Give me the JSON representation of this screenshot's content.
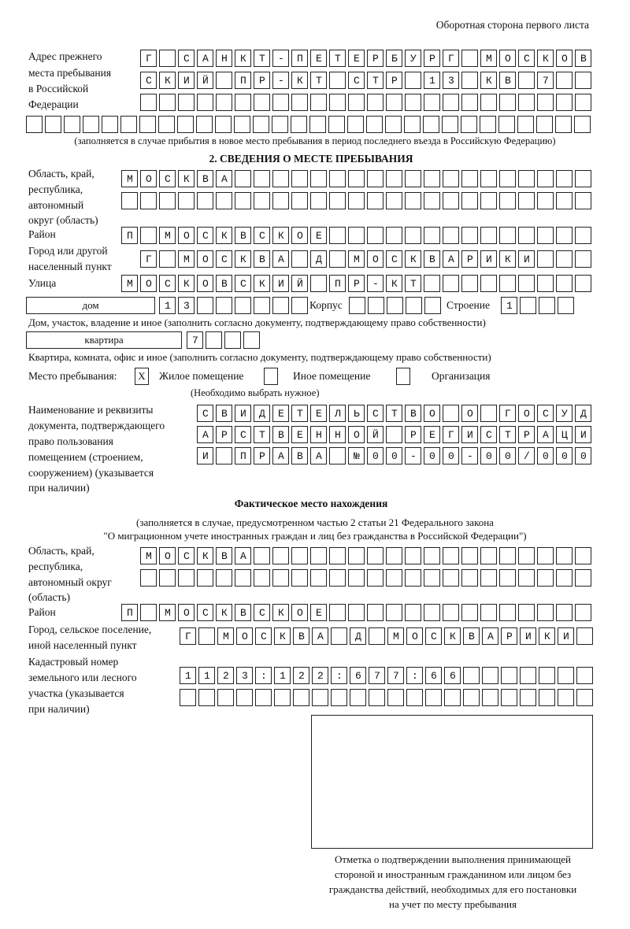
{
  "header": {
    "side_note": "Оборотная сторона первого листа"
  },
  "prev_address": {
    "label_lines": [
      "Адрес прежнего",
      "места пребывания",
      "в Российской",
      "Федерации"
    ],
    "rows": [
      "Г САНКТ-ПЕТЕРБУРГ МОСКОВ",
      "СКИЙ ПР-КТ СТР 13 КВ 7",
      "",
      ""
    ],
    "note": "(заполняется в случае прибытия в новое место пребывания в период последнего въезда в Российскую Федерацию)"
  },
  "section2": {
    "title": "2. СВЕДЕНИЯ О МЕСТЕ ПРЕБЫВАНИЯ",
    "region_label_lines": [
      "Область, край,",
      "республика,",
      "автономный",
      "округ (область)"
    ],
    "region_rows": [
      "МОСКВА",
      ""
    ],
    "district_label": "Район",
    "district": "П МОСКВСКОЕ",
    "city_label_lines": [
      "Город или другой",
      "населенный пункт"
    ],
    "city": "Г МОСКВА Д МОСКВАРИКИ",
    "street_label": "Улица",
    "street": "МОСКОВСКИЙ ПР-КТ",
    "house_type": "дом",
    "house_number": "13",
    "korpus_label": "Корпус",
    "korpus": "",
    "building_label": "Строение",
    "building": "1",
    "house_note": "Дом, участок, владение и иное (заполнить согласно документу, подтверждающему право собственности)",
    "apt_type": "квартира",
    "apt_number": "7",
    "apt_note": "Квартира, комната, офис и иное (заполнить согласно документу, подтверждающему право собственности)",
    "place_label": "Место пребывания:",
    "options": [
      {
        "label": "Жилое помещение",
        "checked": true,
        "mark": "X"
      },
      {
        "label": "Иное помещение",
        "checked": false,
        "mark": ""
      },
      {
        "label": "Организация",
        "checked": false,
        "mark": ""
      }
    ],
    "choose_note": "(Необходимо выбрать нужное)",
    "doc_label_lines": [
      "Наименование и реквизиты",
      "документа, подтверждающего",
      "право пользования",
      "помещением (строением,",
      "сооружением) (указывается",
      "при наличии)"
    ],
    "doc_rows": [
      "СВИДЕТЕЛЬСТВО О ГОСУД",
      "АРСТВЕННОЙ РЕГИСТРАЦИ",
      "И ПРАВА №00-00-00/000"
    ]
  },
  "actual": {
    "title": "Фактическое место нахождения",
    "note_lines": [
      "(заполняется в случае, предусмотренном частью 2 статьи 21 Федерального закона",
      "\"О миграционном учете иностранных граждан и лиц без гражданства в Российской Федерации\")"
    ],
    "region_label_lines": [
      "Область, край,",
      "республика,",
      "автономный округ",
      "(область)"
    ],
    "region_rows": [
      "МОСКВА",
      ""
    ],
    "district_label": "Район",
    "district": "П МОСКВСКОЕ",
    "city_label_lines": [
      "Город, сельское поселение,",
      "иной населенный пункт"
    ],
    "city": "Г МОСКВА Д МОСКВАРИКИ",
    "cadastre_label_lines": [
      "Кадастровый номер",
      "земельного или лесного",
      "участка (указывается",
      "при наличии)"
    ],
    "cadastre_rows": [
      "1123:122:677:66",
      ""
    ]
  },
  "stamp": {
    "caption_lines": [
      "Отметка о подтверждении выполнения принимающей",
      "стороной и иностранным гражданином или лицом без",
      "гражданства действий, необходимых для его постановки",
      "на учет по месту пребывания"
    ]
  }
}
